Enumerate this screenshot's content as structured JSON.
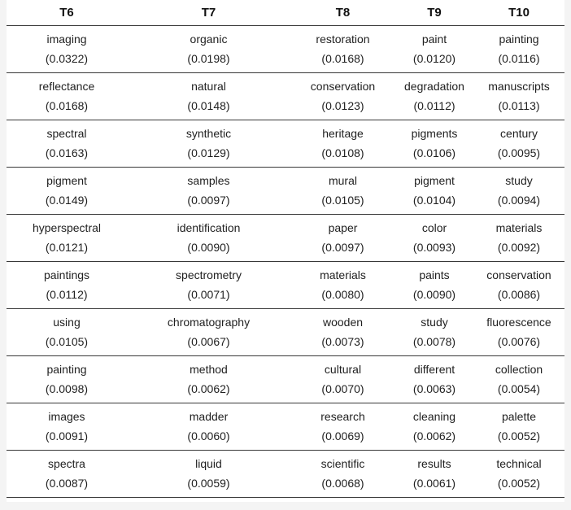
{
  "colors": {
    "page_background": "#f4f4f4",
    "table_background": "#ffffff",
    "separator_line": "#383838",
    "text": "#1f1f1f"
  },
  "chart_data": {
    "type": "table",
    "title": "",
    "description": "Topic model top words with probabilities for topics T6 to T10",
    "columns": [
      "T6",
      "T7",
      "T8",
      "T9",
      "T10"
    ],
    "rows": [
      [
        {
          "word": "imaging",
          "prob": "(0.0322)"
        },
        {
          "word": "organic",
          "prob": "(0.0198)"
        },
        {
          "word": "restoration",
          "prob": "(0.0168)"
        },
        {
          "word": "paint",
          "prob": "(0.0120)"
        },
        {
          "word": "painting",
          "prob": "(0.0116)"
        }
      ],
      [
        {
          "word": "reflectance",
          "prob": "(0.0168)"
        },
        {
          "word": "natural",
          "prob": "(0.0148)"
        },
        {
          "word": "conservation",
          "prob": "(0.0123)"
        },
        {
          "word": "degradation",
          "prob": "(0.0112)"
        },
        {
          "word": "manuscripts",
          "prob": "(0.0113)"
        }
      ],
      [
        {
          "word": "spectral",
          "prob": "(0.0163)"
        },
        {
          "word": "synthetic",
          "prob": "(0.0129)"
        },
        {
          "word": "heritage",
          "prob": "(0.0108)"
        },
        {
          "word": "pigments",
          "prob": "(0.0106)"
        },
        {
          "word": "century",
          "prob": "(0.0095)"
        }
      ],
      [
        {
          "word": "pigment",
          "prob": "(0.0149)"
        },
        {
          "word": "samples",
          "prob": "(0.0097)"
        },
        {
          "word": "mural",
          "prob": "(0.0105)"
        },
        {
          "word": "pigment",
          "prob": "(0.0104)"
        },
        {
          "word": "study",
          "prob": "(0.0094)"
        }
      ],
      [
        {
          "word": "hyperspectral",
          "prob": "(0.0121)"
        },
        {
          "word": "identification",
          "prob": "(0.0090)"
        },
        {
          "word": "paper",
          "prob": "(0.0097)"
        },
        {
          "word": "color",
          "prob": "(0.0093)"
        },
        {
          "word": "materials",
          "prob": "(0.0092)"
        }
      ],
      [
        {
          "word": "paintings",
          "prob": "(0.0112)"
        },
        {
          "word": "spectrometry",
          "prob": "(0.0071)"
        },
        {
          "word": "materials",
          "prob": "(0.0080)"
        },
        {
          "word": "paints",
          "prob": "(0.0090)"
        },
        {
          "word": "conservation",
          "prob": "(0.0086)"
        }
      ],
      [
        {
          "word": "using",
          "prob": "(0.0105)"
        },
        {
          "word": "chromatography",
          "prob": "(0.0067)"
        },
        {
          "word": "wooden",
          "prob": "(0.0073)"
        },
        {
          "word": "study",
          "prob": "(0.0078)"
        },
        {
          "word": "fluorescence",
          "prob": "(0.0076)"
        }
      ],
      [
        {
          "word": "painting",
          "prob": "(0.0098)"
        },
        {
          "word": "method",
          "prob": "(0.0062)"
        },
        {
          "word": "cultural",
          "prob": "(0.0070)"
        },
        {
          "word": "different",
          "prob": "(0.0063)"
        },
        {
          "word": "collection",
          "prob": "(0.0054)"
        }
      ],
      [
        {
          "word": "images",
          "prob": "(0.0091)"
        },
        {
          "word": "madder",
          "prob": "(0.0060)"
        },
        {
          "word": "research",
          "prob": "(0.0069)"
        },
        {
          "word": "cleaning",
          "prob": "(0.0062)"
        },
        {
          "word": "palette",
          "prob": "(0.0052)"
        }
      ],
      [
        {
          "word": "spectra",
          "prob": "(0.0087)"
        },
        {
          "word": "liquid",
          "prob": "(0.0059)"
        },
        {
          "word": "scientific",
          "prob": "(0.0068)"
        },
        {
          "word": "results",
          "prob": "(0.0061)"
        },
        {
          "word": "technical",
          "prob": "(0.0052)"
        }
      ]
    ]
  }
}
